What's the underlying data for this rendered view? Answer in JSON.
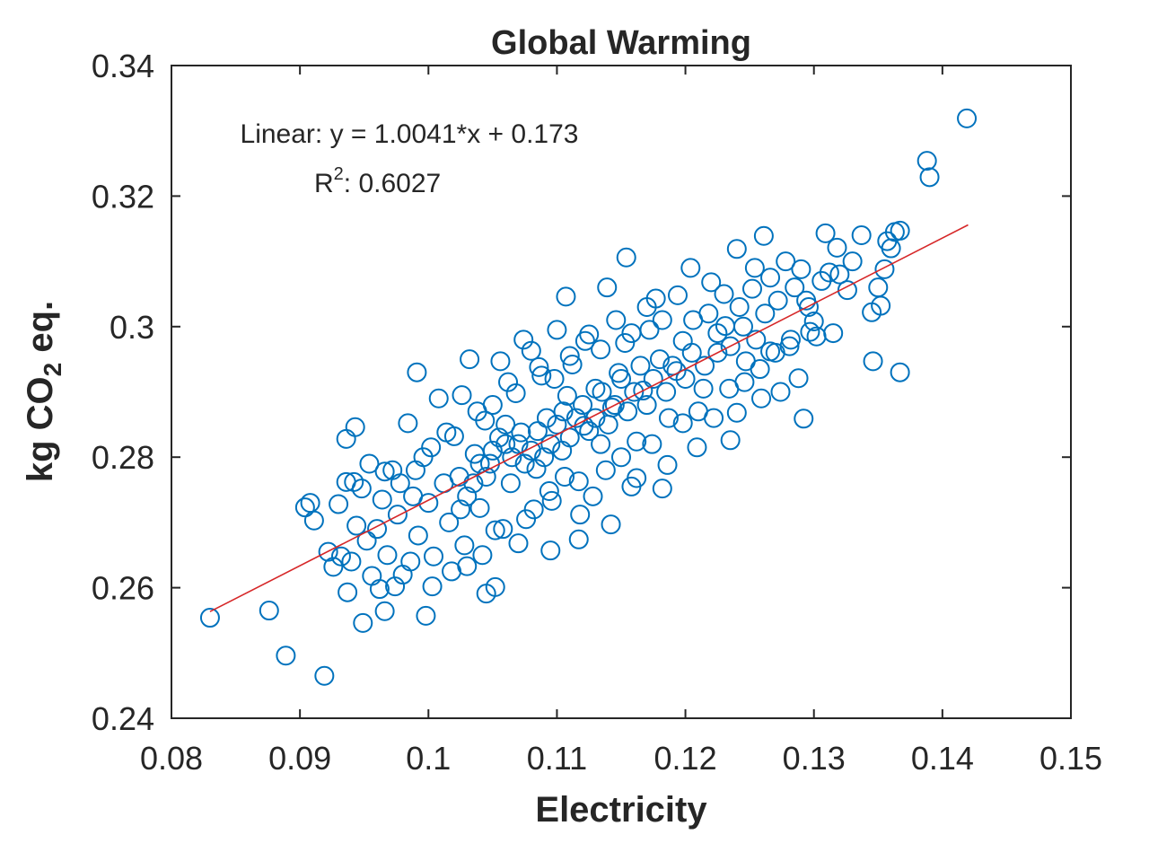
{
  "chart_data": {
    "type": "scatter",
    "title": "Global Warming",
    "xlabel": "Electricity",
    "ylabel_parts": {
      "pre": "kg CO",
      "sub": "2",
      "post": " eq."
    },
    "xlim": [
      0.08,
      0.15
    ],
    "ylim": [
      0.24,
      0.34
    ],
    "xticks": [
      "0.08",
      "0.09",
      "0.1",
      "0.11",
      "0.12",
      "0.13",
      "0.14",
      "0.15"
    ],
    "yticks": [
      "0.24",
      "0.26",
      "0.28",
      "0.3",
      "0.32",
      "0.34"
    ],
    "grid": false,
    "marker_color": "#0072BD",
    "fit_color": "#D62728",
    "annotation": {
      "equation": "Linear: y = 1.0041*x + 0.173",
      "r2_label": "R",
      "r2_sup": "2",
      "r2_value": ": 0.6027"
    },
    "fit": {
      "slope": 1.0041,
      "intercept": 0.173,
      "x_range": [
        0.083,
        0.142
      ]
    },
    "points": [
      [
        0.1419,
        0.3319
      ],
      [
        0.1388,
        0.3254
      ],
      [
        0.139,
        0.3229
      ],
      [
        0.083,
        0.2554
      ],
      [
        0.0876,
        0.2565
      ],
      [
        0.0889,
        0.2496
      ],
      [
        0.0919,
        0.2465
      ],
      [
        0.0949,
        0.2546
      ],
      [
        0.0998,
        0.2557
      ],
      [
        0.1367,
        0.293
      ],
      [
        0.1346,
        0.2947
      ],
      [
        0.1292,
        0.2859
      ],
      [
        0.1154,
        0.3106
      ],
      [
        0.1107,
        0.3046
      ],
      [
        0.0991,
        0.293
      ],
      [
        0.0943,
        0.2846
      ],
      [
        0.0936,
        0.2828
      ],
      [
        0.0904,
        0.2723
      ],
      [
        0.0908,
        0.273
      ],
      [
        0.0911,
        0.2703
      ],
      [
        0.0937,
        0.2593
      ],
      [
        0.0966,
        0.2564
      ],
      [
        0.1045,
        0.2591
      ],
      [
        0.1052,
        0.2601
      ],
      [
        0.1095,
        0.2657
      ],
      [
        0.1117,
        0.2674
      ],
      [
        0.1142,
        0.2697
      ],
      [
        0.124,
        0.3119
      ],
      [
        0.1261,
        0.3139
      ],
      [
        0.1337,
        0.314
      ],
      [
        0.1355,
        0.3088
      ],
      [
        0.1367,
        0.3147
      ],
      [
        0.1326,
        0.3056
      ],
      [
        0.1345,
        0.3022
      ],
      [
        0.1309,
        0.3143
      ],
      [
        0.1363,
        0.3145
      ],
      [
        0.1357,
        0.3131
      ],
      [
        0.1318,
        0.3121
      ],
      [
        0.1312,
        0.3083
      ],
      [
        0.13,
        0.3008
      ],
      [
        0.1297,
        0.2992
      ],
      [
        0.1288,
        0.2921
      ],
      [
        0.1281,
        0.297
      ],
      [
        0.1274,
        0.29
      ],
      [
        0.1266,
        0.2962
      ],
      [
        0.1259,
        0.289
      ],
      [
        0.1252,
        0.3058
      ],
      [
        0.1247,
        0.2947
      ],
      [
        0.124,
        0.2868
      ],
      [
        0.1235,
        0.2826
      ],
      [
        0.1231,
        0.3001
      ],
      [
        0.1225,
        0.296
      ],
      [
        0.122,
        0.3068
      ],
      [
        0.1214,
        0.2905
      ],
      [
        0.1209,
        0.2815
      ],
      [
        0.1204,
        0.309
      ],
      [
        0.1198,
        0.2978
      ],
      [
        0.1193,
        0.2932
      ],
      [
        0.1187,
        0.286
      ],
      [
        0.1182,
        0.2752
      ],
      [
        0.1177,
        0.3043
      ],
      [
        0.1172,
        0.2995
      ],
      [
        0.1167,
        0.2902
      ],
      [
        0.1162,
        0.2824
      ],
      [
        0.1158,
        0.2755
      ],
      [
        0.1153,
        0.2975
      ],
      [
        0.1148,
        0.2929
      ],
      [
        0.1143,
        0.2876
      ],
      [
        0.1139,
        0.306
      ],
      [
        0.1134,
        0.282
      ],
      [
        0.113,
        0.2905
      ],
      [
        0.1125,
        0.2988
      ],
      [
        0.1121,
        0.2848
      ],
      [
        0.1117,
        0.2763
      ],
      [
        0.1112,
        0.2942
      ],
      [
        0.1108,
        0.2894
      ],
      [
        0.1104,
        0.281
      ],
      [
        0.11,
        0.2995
      ],
      [
        0.1096,
        0.2733
      ],
      [
        0.1092,
        0.286
      ],
      [
        0.1088,
        0.2925
      ],
      [
        0.1084,
        0.2782
      ],
      [
        0.108,
        0.2963
      ],
      [
        0.1076,
        0.2705
      ],
      [
        0.1072,
        0.2838
      ],
      [
        0.1068,
        0.2898
      ],
      [
        0.1064,
        0.276
      ],
      [
        0.106,
        0.282
      ],
      [
        0.1056,
        0.2947
      ],
      [
        0.1052,
        0.2688
      ],
      [
        0.1048,
        0.279
      ],
      [
        0.1044,
        0.2856
      ],
      [
        0.104,
        0.2722
      ],
      [
        0.1036,
        0.2805
      ],
      [
        0.1032,
        0.295
      ],
      [
        0.1028,
        0.2665
      ],
      [
        0.1024,
        0.277
      ],
      [
        0.102,
        0.2832
      ],
      [
        0.1016,
        0.27
      ],
      [
        0.1012,
        0.276
      ],
      [
        0.1008,
        0.289
      ],
      [
        0.1004,
        0.2648
      ],
      [
        0.1,
        0.273
      ],
      [
        0.0996,
        0.28
      ],
      [
        0.0992,
        0.268
      ],
      [
        0.0988,
        0.274
      ],
      [
        0.0984,
        0.2852
      ],
      [
        0.098,
        0.262
      ],
      [
        0.0976,
        0.2712
      ],
      [
        0.0972,
        0.278
      ],
      [
        0.0968,
        0.265
      ],
      [
        0.0964,
        0.2735
      ],
      [
        0.096,
        0.269
      ],
      [
        0.0956,
        0.2618
      ],
      [
        0.0952,
        0.2672
      ],
      [
        0.0948,
        0.2752
      ],
      [
        0.0944,
        0.2695
      ],
      [
        0.094,
        0.264
      ],
      [
        0.0936,
        0.2762
      ],
      [
        0.0932,
        0.2648
      ],
      [
        0.0926,
        0.2632
      ],
      [
        0.0922,
        0.2655
      ],
      [
        0.093,
        0.2728
      ],
      [
        0.0962,
        0.2598
      ],
      [
        0.0974,
        0.2602
      ],
      [
        0.0986,
        0.264
      ],
      [
        0.1003,
        0.2602
      ],
      [
        0.1018,
        0.2625
      ],
      [
        0.103,
        0.2633
      ],
      [
        0.1042,
        0.265
      ],
      [
        0.1058,
        0.269
      ],
      [
        0.107,
        0.2668
      ],
      [
        0.1082,
        0.272
      ],
      [
        0.1094,
        0.2748
      ],
      [
        0.1106,
        0.277
      ],
      [
        0.1118,
        0.2712
      ],
      [
        0.1128,
        0.274
      ],
      [
        0.1138,
        0.278
      ],
      [
        0.115,
        0.28
      ],
      [
        0.1162,
        0.2768
      ],
      [
        0.1174,
        0.282
      ],
      [
        0.1186,
        0.2788
      ],
      [
        0.1198,
        0.2852
      ],
      [
        0.121,
        0.287
      ],
      [
        0.1222,
        0.286
      ],
      [
        0.1234,
        0.2905
      ],
      [
        0.1246,
        0.2915
      ],
      [
        0.1258,
        0.2935
      ],
      [
        0.127,
        0.296
      ],
      [
        0.1282,
        0.298
      ],
      [
        0.1294,
        0.304
      ],
      [
        0.1306,
        0.307
      ],
      [
        0.129,
        0.3088
      ],
      [
        0.1278,
        0.31
      ],
      [
        0.1266,
        0.3075
      ],
      [
        0.1254,
        0.309
      ],
      [
        0.1242,
        0.303
      ],
      [
        0.123,
        0.305
      ],
      [
        0.1218,
        0.302
      ],
      [
        0.1206,
        0.301
      ],
      [
        0.1194,
        0.3048
      ],
      [
        0.1182,
        0.301
      ],
      [
        0.117,
        0.303
      ],
      [
        0.1158,
        0.299
      ],
      [
        0.1146,
        0.301
      ],
      [
        0.1134,
        0.2965
      ],
      [
        0.1122,
        0.2978
      ],
      [
        0.111,
        0.2955
      ],
      [
        0.1098,
        0.292
      ],
      [
        0.1086,
        0.2938
      ],
      [
        0.1074,
        0.298
      ],
      [
        0.1062,
        0.2915
      ],
      [
        0.105,
        0.288
      ],
      [
        0.1038,
        0.287
      ],
      [
        0.1026,
        0.2895
      ],
      [
        0.1014,
        0.2838
      ],
      [
        0.1002,
        0.2815
      ],
      [
        0.099,
        0.278
      ],
      [
        0.0978,
        0.276
      ],
      [
        0.0966,
        0.2778
      ],
      [
        0.0954,
        0.279
      ],
      [
        0.0942,
        0.2762
      ],
      [
        0.1115,
        0.286
      ],
      [
        0.112,
        0.288
      ],
      [
        0.1125,
        0.284
      ],
      [
        0.113,
        0.286
      ],
      [
        0.1135,
        0.29
      ],
      [
        0.114,
        0.285
      ],
      [
        0.1145,
        0.288
      ],
      [
        0.115,
        0.292
      ],
      [
        0.1155,
        0.287
      ],
      [
        0.116,
        0.29
      ],
      [
        0.1165,
        0.294
      ],
      [
        0.117,
        0.288
      ],
      [
        0.1175,
        0.292
      ],
      [
        0.118,
        0.295
      ],
      [
        0.1185,
        0.29
      ],
      [
        0.119,
        0.294
      ],
      [
        0.11,
        0.285
      ],
      [
        0.1095,
        0.282
      ],
      [
        0.109,
        0.28
      ],
      [
        0.1085,
        0.284
      ],
      [
        0.108,
        0.281
      ],
      [
        0.1075,
        0.279
      ],
      [
        0.107,
        0.282
      ],
      [
        0.1065,
        0.28
      ],
      [
        0.106,
        0.285
      ],
      [
        0.1055,
        0.283
      ],
      [
        0.105,
        0.281
      ],
      [
        0.1045,
        0.277
      ],
      [
        0.104,
        0.279
      ],
      [
        0.1035,
        0.276
      ],
      [
        0.103,
        0.274
      ],
      [
        0.1025,
        0.272
      ],
      [
        0.1105,
        0.287
      ],
      [
        0.111,
        0.283
      ],
      [
        0.12,
        0.292
      ],
      [
        0.1205,
        0.296
      ],
      [
        0.1215,
        0.294
      ],
      [
        0.1225,
        0.299
      ],
      [
        0.1235,
        0.297
      ],
      [
        0.1245,
        0.3
      ],
      [
        0.1255,
        0.298
      ],
      [
        0.1262,
        0.302
      ],
      [
        0.1272,
        0.304
      ],
      [
        0.1285,
        0.306
      ],
      [
        0.1296,
        0.303
      ],
      [
        0.1302,
        0.2985
      ],
      [
        0.1315,
        0.299
      ],
      [
        0.132,
        0.308
      ],
      [
        0.133,
        0.31
      ],
      [
        0.135,
        0.306
      ],
      [
        0.136,
        0.312
      ],
      [
        0.1352,
        0.3032
      ]
    ]
  }
}
